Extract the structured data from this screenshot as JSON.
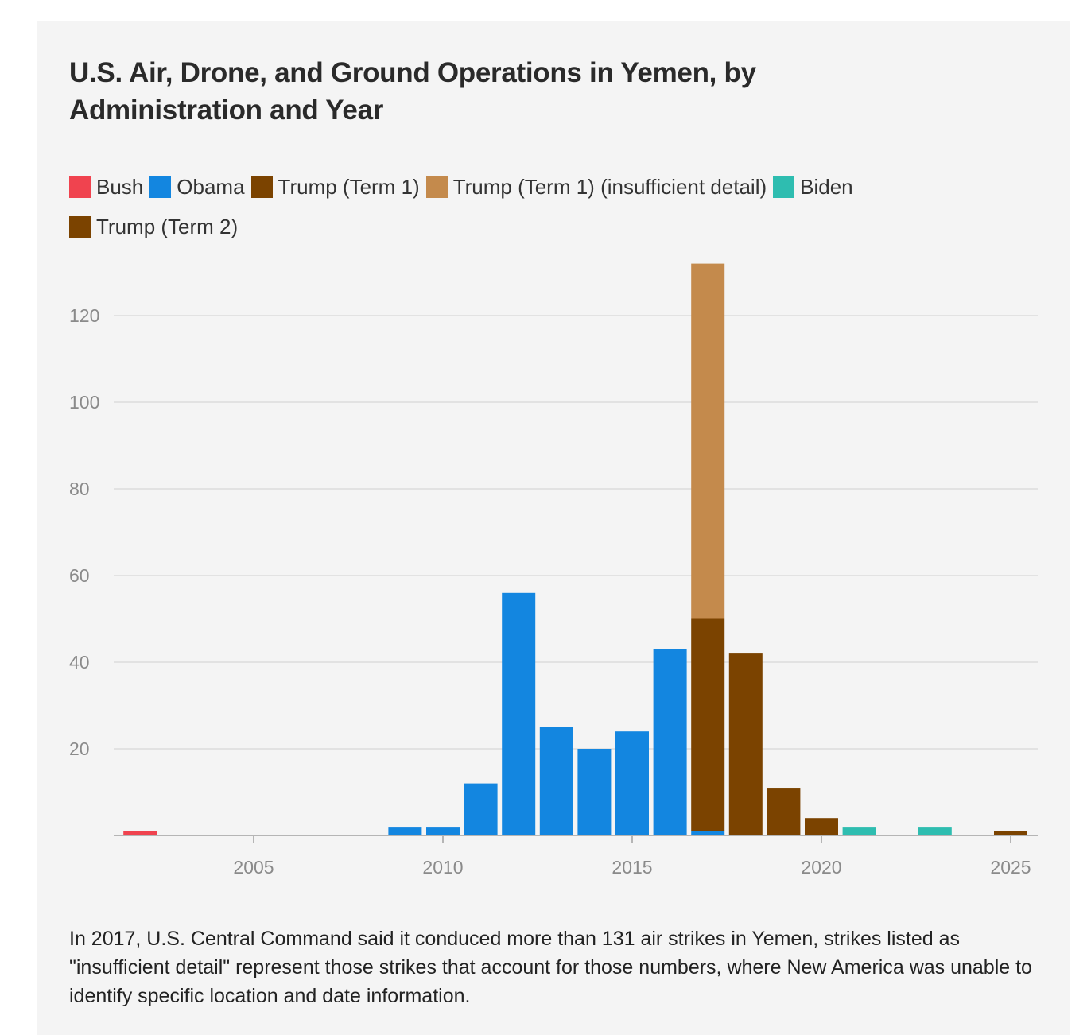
{
  "chart_data": {
    "type": "bar",
    "stacked": true,
    "title": "U.S. Air, Drone, and Ground Operations in Yemen, by Administration and Year",
    "xlabel": "",
    "ylabel": "",
    "xlim": [
      2001.5,
      2025.7
    ],
    "ylim": [
      0,
      135
    ],
    "xticks": [
      2005,
      2010,
      2015,
      2020,
      2025
    ],
    "yticks": [
      20,
      40,
      60,
      80,
      100,
      120
    ],
    "grid": true,
    "legend_position": "top",
    "series": [
      {
        "name": "Bush",
        "color": "#f0434f",
        "points": [
          [
            2002,
            1
          ]
        ]
      },
      {
        "name": "Obama",
        "color": "#1386e0",
        "points": [
          [
            2009,
            2
          ],
          [
            2010,
            2
          ],
          [
            2011,
            12
          ],
          [
            2012,
            56
          ],
          [
            2013,
            25
          ],
          [
            2014,
            20
          ],
          [
            2015,
            24
          ],
          [
            2016,
            43
          ],
          [
            2017,
            1
          ]
        ]
      },
      {
        "name": "Trump (Term 1)",
        "color": "#7b4300",
        "points": [
          [
            2017,
            49
          ],
          [
            2018,
            42
          ],
          [
            2019,
            11
          ],
          [
            2020,
            4
          ]
        ]
      },
      {
        "name": "Trump (Term 1) (insufficient detail)",
        "color": "#c48a4c",
        "points": [
          [
            2017,
            82
          ]
        ]
      },
      {
        "name": "Biden",
        "color": "#2ebdb0",
        "points": [
          [
            2021,
            2
          ],
          [
            2023,
            2
          ]
        ]
      },
      {
        "name": "Trump (Term 2)",
        "color": "#7b4300",
        "points": [
          [
            2025,
            1
          ]
        ]
      }
    ],
    "note": "In 2017, U.S. Central Command said it conduced more than 131 air strikes in Yemen, strikes listed as \"insufficient detail\" represent those strikes that account for those numbers, where New America was unable to identify specific location and date information."
  }
}
